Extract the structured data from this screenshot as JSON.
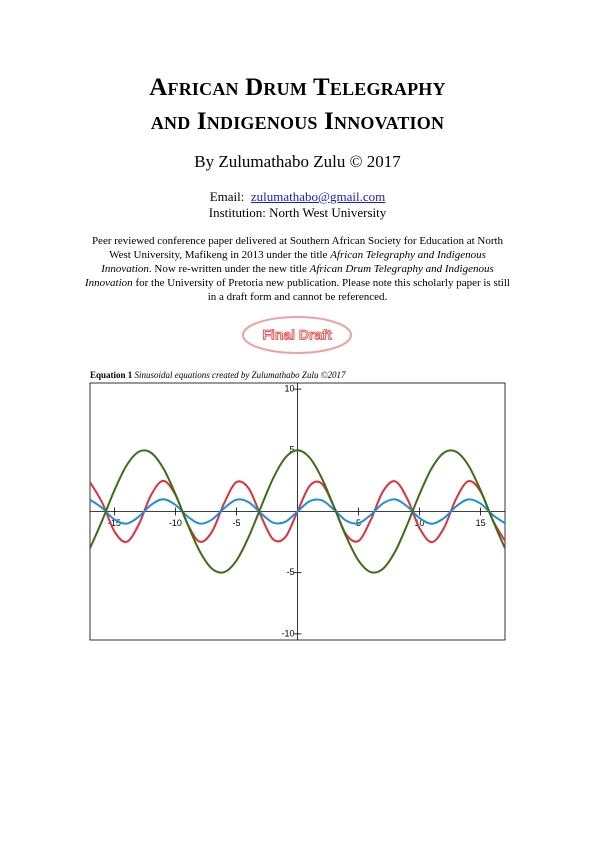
{
  "header": {
    "title_line1": "African Drum Telegraphy",
    "title_line2": "and Indigenous Innovation",
    "author": "By Zulumathabo Zulu © 2017"
  },
  "contact": {
    "email_label": "Email:",
    "email": "zulumathabo@gmail.com",
    "institution": "Institution: North West University"
  },
  "abstract": [
    {
      "text": "Peer reviewed conference paper delivered at Southern African Society for Education at North West University, Mafikeng in 2013 under the title ",
      "italic": false
    },
    {
      "text": "African Telegraphy and Indigenous Innovation",
      "italic": true
    },
    {
      "text": ". Now re-written under the new title ",
      "italic": false
    },
    {
      "text": "African Drum Telegraphy and Indigenous Innovation",
      "italic": true
    },
    {
      "text": " for the University of Pretoria new publication. Please note this scholarly paper is still in a draft form and cannot be referenced.",
      "italic": false
    }
  ],
  "stamp": "Final Draft",
  "caption": {
    "label": "Equation 1",
    "text": "Sinusoidal equations created by Zulumathabo Zulu ©2017"
  },
  "chart_data": {
    "type": "line",
    "x": [
      -17,
      -16,
      -15,
      -14,
      -13,
      -12,
      -11,
      -10,
      -9,
      -8,
      -7,
      -6,
      -5,
      -4,
      -3,
      -2,
      -1,
      0,
      1,
      2,
      3,
      4,
      5,
      6,
      7,
      8,
      9,
      10,
      11,
      12,
      13,
      14,
      15,
      16,
      17
    ],
    "series": [
      {
        "color": "#e0303c",
        "values": [
          2.4,
          0.72,
          -1.63,
          -2.48,
          -1.05,
          1.34,
          2.5,
          1.36,
          -1.03,
          -2.47,
          -1.64,
          0.7,
          2.4,
          1.89,
          -0.35,
          -2.27,
          -2.1,
          0,
          2.1,
          2.27,
          0.35,
          -1.89,
          -2.4,
          -0.7,
          1.64,
          2.47,
          1.03,
          -1.36,
          -2.5,
          -1.34,
          1.05,
          2.48,
          1.63,
          -0.72,
          -2.4
        ]
      },
      {
        "color": "#1e8ee0",
        "values": [
          0.96,
          0.29,
          -0.65,
          -0.99,
          -0.42,
          0.54,
          1.0,
          0.54,
          -0.41,
          -0.99,
          -0.66,
          0.28,
          0.96,
          0.76,
          -0.14,
          -0.91,
          -0.84,
          0,
          0.84,
          0.91,
          0.14,
          -0.76,
          -0.96,
          -0.28,
          0.66,
          0.99,
          0.41,
          -0.54,
          -1.0,
          -0.54,
          0.42,
          0.99,
          0.65,
          -0.29,
          -0.96
        ]
      },
      {
        "color": "#3b6e16",
        "values": [
          -3.01,
          -0.73,
          1.73,
          3.77,
          4.88,
          4.8,
          3.54,
          1.42,
          -1.05,
          -3.27,
          -4.68,
          -4.95,
          -4.01,
          -2.08,
          0.35,
          2.7,
          4.39,
          5,
          4.39,
          2.7,
          0.35,
          -2.08,
          -4.01,
          -4.95,
          -4.68,
          -3.27,
          -1.05,
          1.42,
          3.54,
          4.8,
          4.88,
          3.77,
          1.73,
          -0.73,
          -3.01
        ]
      }
    ],
    "xlim": [
      -17,
      17
    ],
    "ylim": [
      -10.5,
      10.5
    ],
    "xticks": [
      -15,
      -10,
      -5,
      5,
      10,
      15
    ],
    "yticks": [
      -10,
      -5,
      5,
      10
    ]
  }
}
